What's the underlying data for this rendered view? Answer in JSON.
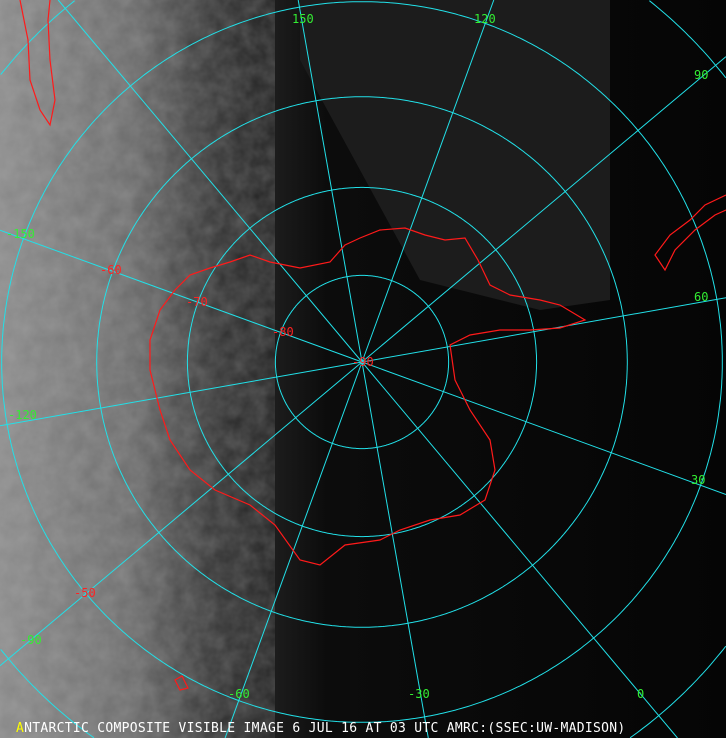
{
  "caption": "NTARCTIC COMPOSITE VISIBLE IMAGE 6 JUL 16 AT 03 UTC AMRC:(SSEC:UW-MADISON)",
  "caption_logo": "A",
  "colors": {
    "grid": "#22e0e8",
    "coast": "#ff1a1a",
    "longitude_labels": "#33ee33",
    "latitude_labels": "#ff2222",
    "caption": "#ffffff"
  },
  "latitude_circles": [
    -80,
    -70,
    -60,
    -50,
    -40
  ],
  "longitude_lines": [
    0,
    30,
    60,
    90,
    120,
    150,
    180,
    -150,
    -120,
    -90,
    -60,
    -30
  ],
  "longitude_labels": [
    "150",
    "120",
    "90",
    "60",
    "30",
    "0",
    "-30",
    "-60",
    "-90",
    "-120",
    "-150"
  ],
  "latitude_labels": [
    "-50",
    "-60",
    "-70",
    "-80",
    "-90"
  ],
  "projection": "south polar stereographic"
}
